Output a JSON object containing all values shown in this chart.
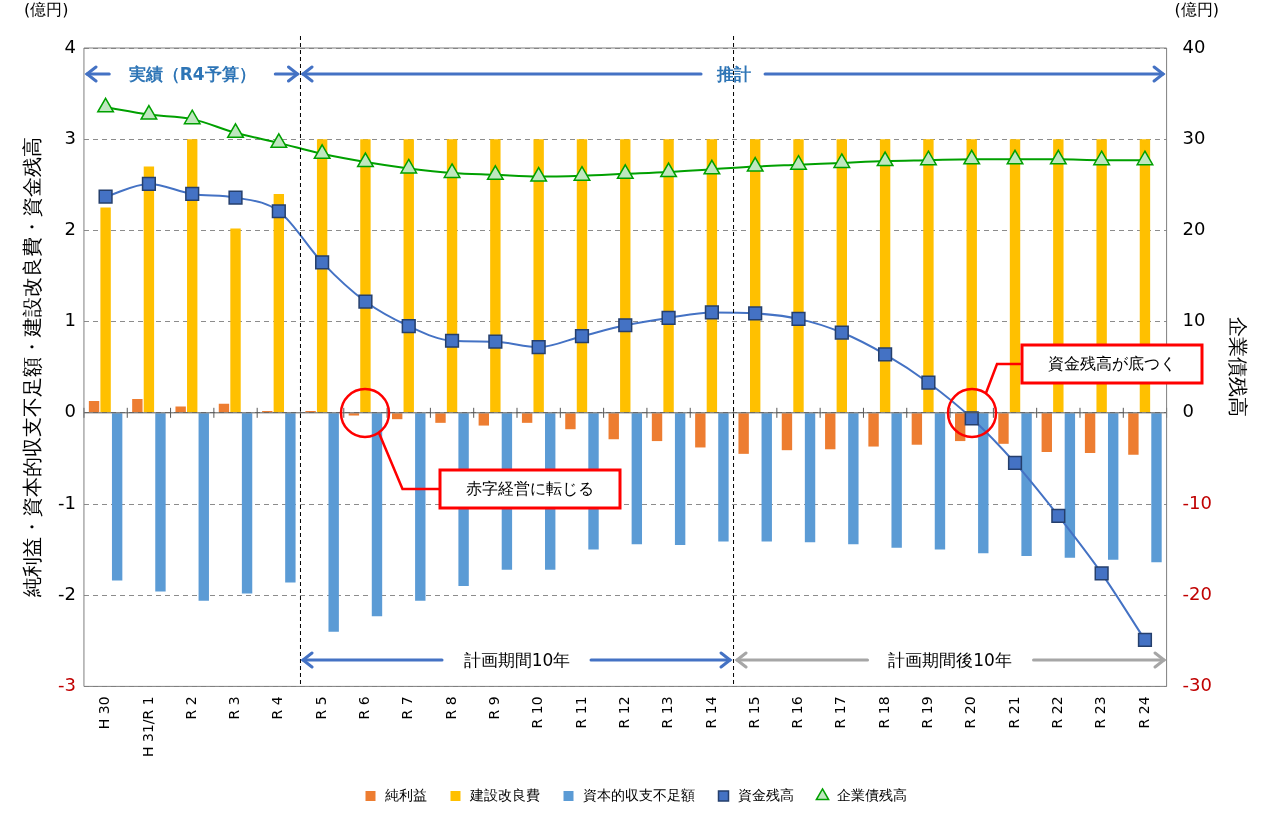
{
  "chart_data": {
    "type": "bar",
    "ylabel": "純利益・資本的収支不足額・建設改良費・資金残高",
    "y2label": "企業債残高",
    "categories": [
      "H 30",
      "H 31/R 1",
      "R 2",
      "R 3",
      "R 4",
      "R 5",
      "R 6",
      "R 7",
      "R 8",
      "R 9",
      "R 10",
      "R 11",
      "R 12",
      "R 13",
      "R 14",
      "R 15",
      "R 16",
      "R 17",
      "R 18",
      "R 19",
      "R 20",
      "R 21",
      "R 22",
      "R 23",
      "R 24"
    ],
    "series": [
      {
        "name": "純利益",
        "color": "#ed7d31",
        "values": [
          0.13,
          0.15,
          0.07,
          0.1,
          0.02,
          0.02,
          -0.03,
          -0.07,
          -0.11,
          -0.14,
          -0.11,
          -0.18,
          -0.29,
          -0.31,
          -0.38,
          -0.45,
          -0.41,
          -0.4,
          -0.37,
          -0.35,
          -0.31,
          -0.34,
          -0.43,
          -0.44,
          -0.46
        ]
      },
      {
        "name": "建設改良費",
        "color": "#ffc000",
        "values": [
          2.25,
          2.7,
          3,
          2.02,
          2.4,
          3,
          3,
          3,
          3,
          3,
          3,
          3,
          3,
          3,
          3,
          3,
          3,
          3,
          3,
          3,
          3,
          3,
          3,
          3,
          3
        ]
      },
      {
        "name": "資本的収支不足額",
        "color": "#5b9bd5",
        "values": [
          -1.84,
          -1.96,
          -2.06,
          -1.98,
          -1.86,
          -2.4,
          -2.23,
          -2.06,
          -1.9,
          -1.72,
          -1.72,
          -1.5,
          -1.44,
          -1.45,
          -1.41,
          -1.41,
          -1.42,
          -1.44,
          -1.48,
          -1.5,
          -1.54,
          -1.57,
          -1.59,
          -1.61,
          -1.64
        ]
      },
      {
        "name": "資金残高",
        "type": "line",
        "color": "#4472c4",
        "marker": "square",
        "values": [
          2.37,
          2.51,
          2.4,
          2.36,
          2.21,
          1.65,
          1.22,
          0.95,
          0.79,
          0.78,
          0.72,
          0.84,
          0.96,
          1.04,
          1.1,
          1.09,
          1.03,
          0.88,
          0.64,
          0.33,
          -0.06,
          -0.55,
          -1.13,
          -1.76,
          -2.49
        ]
      },
      {
        "name": "企業債残高",
        "type": "line",
        "axis": "y2",
        "color": "#00a000",
        "marker": "triangle",
        "values": [
          33.5,
          32.7,
          32.2,
          30.7,
          29.6,
          28.4,
          27.5,
          26.8,
          26.3,
          26.1,
          25.9,
          26,
          26.2,
          26.4,
          26.7,
          27,
          27.2,
          27.4,
          27.6,
          27.7,
          27.8,
          27.8,
          27.8,
          27.7,
          27.7
        ]
      }
    ],
    "ylim": [
      -3,
      4
    ],
    "yticks": [
      -3,
      -2,
      -1,
      0,
      1,
      2,
      3,
      4
    ],
    "y2lim": [
      -30,
      40
    ],
    "y2ticks": [
      -30,
      -20,
      -10,
      0,
      10,
      20,
      30,
      40
    ],
    "grid": "y",
    "legend": "bottom",
    "line_style": "solid",
    "annotations": [
      "(億円)",
      "(億円)",
      "実績（R4予算）",
      "推計",
      "計画期間10年",
      "計画期間後10年",
      "赤字経営に転じる",
      "資金残高が底つく"
    ]
  }
}
